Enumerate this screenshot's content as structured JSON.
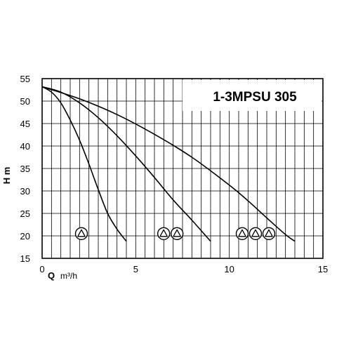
{
  "chart_data": {
    "type": "line",
    "title": "1-3MPSU 305",
    "xlabel": "Q",
    "xunit": "m³/h",
    "ylabel": "H",
    "yunit": "m",
    "xlim": [
      0,
      15
    ],
    "ylim": [
      15,
      55
    ],
    "xticks": [
      0,
      5,
      10,
      15
    ],
    "yticks": [
      15,
      20,
      25,
      30,
      35,
      40,
      45,
      50,
      55
    ],
    "grid": true,
    "series": [
      {
        "pumps": 1,
        "marker": "pump-symbol",
        "x": [
          0,
          0.5,
          1,
          1.5,
          2,
          2.5,
          3,
          3.5,
          4,
          4.5
        ],
        "y": [
          53.2,
          52,
          49.6,
          45.8,
          41.3,
          36,
          30.3,
          25,
          21.5,
          18.8
        ]
      },
      {
        "pumps": 2,
        "marker": "pump-symbol",
        "x": [
          0,
          1,
          2,
          3,
          4,
          5,
          6,
          7,
          8,
          9
        ],
        "y": [
          53.2,
          52,
          49.6,
          46.3,
          42.3,
          37.8,
          33,
          28,
          23.5,
          18.8
        ]
      },
      {
        "pumps": 3,
        "marker": "pump-symbol",
        "x": [
          0,
          2,
          4,
          6,
          8,
          10,
          11,
          12,
          13,
          13.5
        ],
        "y": [
          53.2,
          50.5,
          47,
          42.6,
          37.5,
          31.3,
          27.8,
          24,
          20.3,
          18.8
        ]
      }
    ],
    "pump_markers": [
      {
        "x": 2.1,
        "y": 20.5,
        "count": 1
      },
      {
        "x": 6.85,
        "y": 20.5,
        "count": 2
      },
      {
        "x": 11.4,
        "y": 20.5,
        "count": 3
      }
    ]
  }
}
